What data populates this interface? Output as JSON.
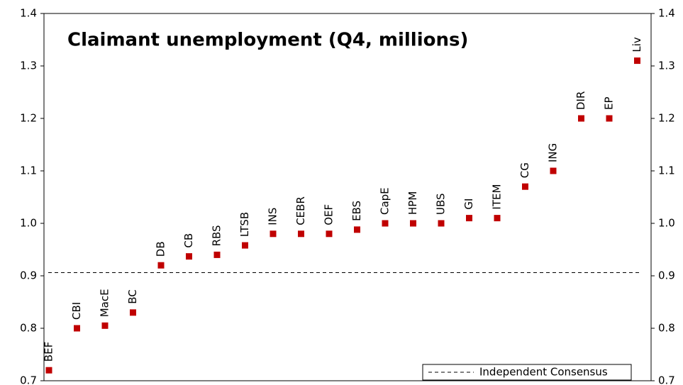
{
  "chart_data": {
    "type": "dot",
    "title": "Claimant unemployment  (Q4, millions)",
    "categories": [
      "BEF",
      "CBI",
      "MacE",
      "BC",
      "DB",
      "CB",
      "RBS",
      "LTSB",
      "INS",
      "CEBR",
      "OEF",
      "EBS",
      "CapE",
      "HPM",
      "UBS",
      "GI",
      "ITEM",
      "CG",
      "ING",
      "DIR",
      "EP",
      "Liv"
    ],
    "series": [
      {
        "color": "#c00000",
        "values": [
          0.72,
          0.8,
          0.805,
          0.83,
          0.92,
          0.937,
          0.94,
          0.958,
          0.98,
          0.98,
          0.98,
          0.988,
          1.0,
          1.0,
          1.0,
          1.01,
          1.01,
          1.07,
          1.1,
          1.2,
          1.2,
          1.31
        ]
      }
    ],
    "consensus": {
      "name": "Independent Consensus",
      "value": 0.906,
      "color": "#000000"
    },
    "ylim": [
      0.7,
      1.4
    ],
    "yticks": [
      0.7,
      0.8,
      0.9,
      {
        "value": 1,
        "label": "1.0"
      },
      1.1,
      1.2,
      1.3,
      1.4
    ],
    "y2lim": [
      0.7,
      1.4
    ],
    "y2ticks": [
      0.7,
      0.8,
      0.9,
      {
        "value": 1,
        "label": "1.0"
      },
      1.1,
      1.2,
      1.3,
      1.4
    ],
    "legend": "lower right"
  }
}
